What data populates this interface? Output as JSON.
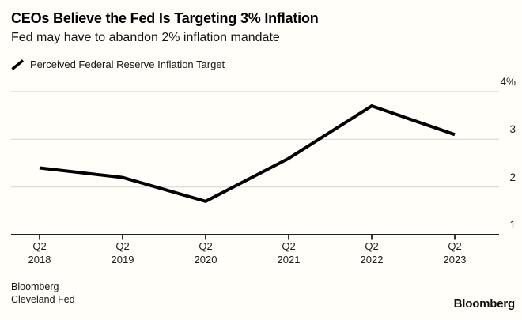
{
  "header": {
    "title": "CEOs Believe the Fed Is Targeting 3% Inflation",
    "subtitle": "Fed may have to abandon 2% inflation mandate"
  },
  "legend": {
    "marker_icon": "line-slash-icon",
    "label": "Perceived Federal Reserve Inflation Target"
  },
  "chart_data": {
    "type": "line",
    "title": "CEOs Believe the Fed Is Targeting 3% Inflation",
    "subtitle": "Fed may have to abandon 2% inflation mandate",
    "categories": [
      {
        "quarter": "Q2",
        "year": "2018"
      },
      {
        "quarter": "Q2",
        "year": "2019"
      },
      {
        "quarter": "Q2",
        "year": "2020"
      },
      {
        "quarter": "Q2",
        "year": "2021"
      },
      {
        "quarter": "Q2",
        "year": "2022"
      },
      {
        "quarter": "Q2",
        "year": "2023"
      }
    ],
    "series": [
      {
        "name": "Perceived Federal Reserve Inflation Target",
        "values": [
          2.4,
          2.2,
          1.7,
          2.6,
          3.7,
          3.1
        ]
      }
    ],
    "y_axis": {
      "side": "right",
      "range": [
        1,
        4
      ],
      "ticks": [
        4,
        3,
        2,
        1
      ],
      "tick_labels": [
        "4%",
        "3",
        "2",
        "1"
      ]
    },
    "grid": "horizontal",
    "colors": {
      "line": "#000000",
      "gridline": "#d9d8d1",
      "axis": "#000000",
      "background": "#fffef8",
      "text": "#161616"
    }
  },
  "footer": {
    "source_line1": "Bloomberg",
    "source_line2": "Cleveland Fed",
    "logo_text": "Bloomberg"
  }
}
